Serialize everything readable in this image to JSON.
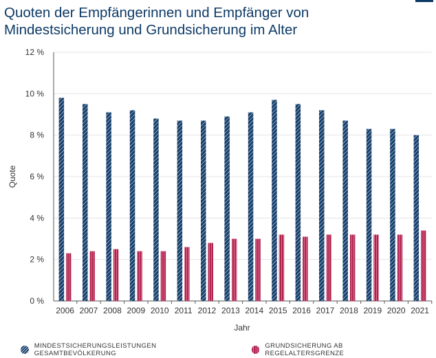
{
  "header": {
    "title": "Quoten der Empfängerinnen und Empfänger von Mindestsicherung und Grundsicherung im Alter"
  },
  "chart_data": {
    "type": "bar",
    "title": "Quoten der Empfängerinnen und Empfänger von Mindestsicherung und Grundsicherung im Alter",
    "xlabel": "Jahr",
    "ylabel": "Quote",
    "ylim": [
      0,
      12
    ],
    "yticks": [
      "0 %",
      "2 %",
      "4 %",
      "6 %",
      "8 %",
      "10 %",
      "12 %"
    ],
    "categories": [
      "2006",
      "2007",
      "2008",
      "2009",
      "2010",
      "2011",
      "2012",
      "2013",
      "2014",
      "2015",
      "2016",
      "2017",
      "2018",
      "2019",
      "2020",
      "2021"
    ],
    "series": [
      {
        "name": "MINDESTSICHERUNGSLEISTUNGEN GESAMTBEVÖLKERUNG",
        "color": "#17406d",
        "values": [
          9.8,
          9.5,
          9.1,
          9.2,
          8.8,
          8.7,
          8.7,
          8.9,
          9.1,
          9.7,
          9.5,
          9.2,
          8.7,
          8.3,
          8.3,
          8.0
        ]
      },
      {
        "name": "GRUNDSICHERUNG AB REGELALTERSGRENZE",
        "color": "#b0234f",
        "values": [
          2.3,
          2.4,
          2.5,
          2.4,
          2.4,
          2.6,
          2.8,
          3.0,
          3.0,
          3.2,
          3.1,
          3.2,
          3.2,
          3.2,
          3.2,
          3.4
        ]
      }
    ],
    "grid": true,
    "legend": "bottom-left"
  }
}
